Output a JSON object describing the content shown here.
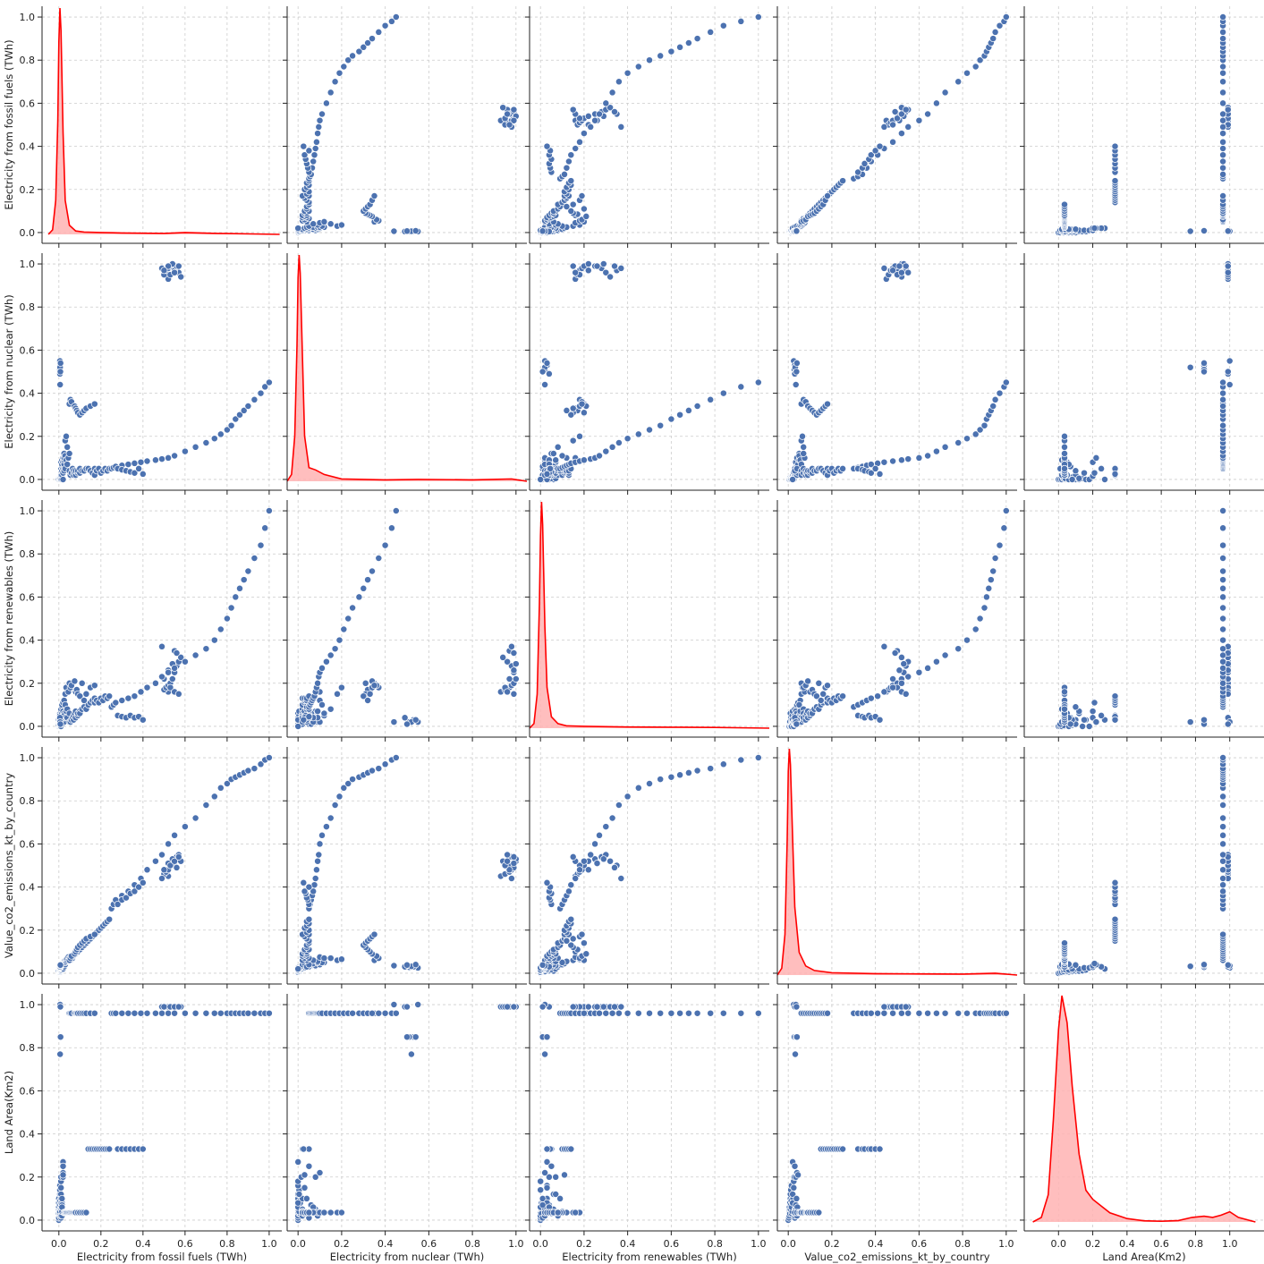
{
  "figure": {
    "type": "pairplot",
    "variables": [
      "Electricity from fossil fuels (TWh)",
      "Electricity from nuclear (TWh)",
      "Electricity from renewables (TWh)",
      "Value_co2_emissions_kt_by_country",
      "Land Area(Km2)"
    ],
    "colors": {
      "scatter": "#4c72b0",
      "scatter_edge": "#ffffff",
      "kde_line": "#ff0000",
      "kde_fill": "#ffb3b3",
      "grid": "#cccccc"
    }
  },
  "chart_data": {
    "type": "scatter",
    "grid": true,
    "axes": [
      {
        "name": "Electricity from fossil fuels (TWh)",
        "xlim": [
          -0.08,
          1.06
        ],
        "ylim": [
          -0.05,
          1.05
        ],
        "ticks": [
          "0.0",
          "0.2",
          "0.4",
          "0.6",
          "0.8",
          "1.0"
        ]
      },
      {
        "name": "Electricity from nuclear (TWh)",
        "xlim": [
          -0.05,
          1.05
        ],
        "ylim": [
          -0.05,
          1.05
        ],
        "ticks": [
          "0.0",
          "0.2",
          "0.4",
          "0.6",
          "0.8",
          "1.0"
        ]
      },
      {
        "name": "Electricity from renewables (TWh)",
        "xlim": [
          -0.05,
          1.05
        ],
        "ylim": [
          -0.05,
          1.05
        ],
        "ticks": [
          "0.0",
          "0.2",
          "0.4",
          "0.6",
          "0.8",
          "1.0"
        ]
      },
      {
        "name": "Value_co2_emissions_kt_by_country",
        "xlim": [
          -0.05,
          1.05
        ],
        "ylim": [
          -0.05,
          1.05
        ],
        "ticks": [
          "0.0",
          "0.2",
          "0.4",
          "0.6",
          "0.8",
          "1.0"
        ]
      },
      {
        "name": "Land Area(Km2)",
        "xlim": [
          -0.2,
          1.2
        ],
        "ylim": [
          -0.05,
          1.05
        ],
        "ticks": [
          "0.0",
          "0.2",
          "0.4",
          "0.6",
          "0.8",
          "1.0"
        ],
        "xticks": [
          "0.0",
          "0.2",
          "0.4",
          "0.6",
          "0.8",
          "1.0"
        ]
      }
    ],
    "diagonal": [
      {
        "variable": "Electricity from fossil fuels (TWh)",
        "kde_x": [
          -0.05,
          -0.03,
          -0.015,
          -0.005,
          0.0,
          0.005,
          0.01,
          0.02,
          0.03,
          0.05,
          0.08,
          0.12,
          0.2,
          0.3,
          0.5,
          0.6,
          0.75,
          1.05
        ],
        "kde_y": [
          0.0,
          0.02,
          0.15,
          0.5,
          0.85,
          1.0,
          0.9,
          0.45,
          0.15,
          0.04,
          0.015,
          0.01,
          0.008,
          0.006,
          0.004,
          0.008,
          0.004,
          0.0
        ]
      },
      {
        "variable": "Electricity from nuclear (TWh)",
        "kde_x": [
          -0.05,
          -0.03,
          -0.015,
          -0.005,
          0.0,
          0.005,
          0.01,
          0.02,
          0.03,
          0.05,
          0.08,
          0.12,
          0.2,
          0.4,
          0.55,
          0.8,
          0.98,
          1.05
        ],
        "kde_y": [
          0.0,
          0.03,
          0.2,
          0.6,
          0.9,
          1.0,
          0.92,
          0.55,
          0.2,
          0.06,
          0.05,
          0.03,
          0.01,
          0.006,
          0.008,
          0.006,
          0.01,
          0.0
        ]
      },
      {
        "variable": "Electricity from renewables (TWh)",
        "kde_x": [
          -0.05,
          -0.03,
          -0.015,
          -0.005,
          0.0,
          0.005,
          0.01,
          0.02,
          0.03,
          0.05,
          0.08,
          0.12,
          0.2,
          0.4,
          0.6,
          0.8,
          1.05
        ],
        "kde_y": [
          0.0,
          0.02,
          0.15,
          0.55,
          0.85,
          1.0,
          0.9,
          0.45,
          0.18,
          0.05,
          0.02,
          0.01,
          0.008,
          0.005,
          0.004,
          0.003,
          0.0
        ]
      },
      {
        "variable": "Value_co2_emissions_kt_by_country",
        "kde_x": [
          -0.05,
          -0.03,
          -0.015,
          -0.005,
          0.0,
          0.005,
          0.01,
          0.02,
          0.03,
          0.05,
          0.08,
          0.12,
          0.2,
          0.4,
          0.6,
          0.8,
          0.95,
          1.05
        ],
        "kde_y": [
          0.0,
          0.03,
          0.18,
          0.6,
          0.9,
          1.0,
          0.93,
          0.6,
          0.3,
          0.1,
          0.04,
          0.02,
          0.01,
          0.006,
          0.005,
          0.004,
          0.008,
          0.0
        ]
      },
      {
        "variable": "Land Area(Km2)",
        "kde_x": [
          -0.15,
          -0.1,
          -0.06,
          -0.03,
          0.0,
          0.02,
          0.05,
          0.08,
          0.12,
          0.16,
          0.2,
          0.25,
          0.3,
          0.4,
          0.5,
          0.6,
          0.7,
          0.78,
          0.85,
          0.9,
          0.95,
          1.0,
          1.05,
          1.15
        ],
        "kde_y": [
          0.0,
          0.02,
          0.12,
          0.45,
          0.85,
          1.0,
          0.88,
          0.6,
          0.3,
          0.14,
          0.1,
          0.07,
          0.04,
          0.015,
          0.005,
          0.003,
          0.006,
          0.02,
          0.025,
          0.02,
          0.03,
          0.045,
          0.02,
          0.0
        ]
      }
    ],
    "series": [
      {
        "name": "Electricity from fossil fuels (TWh)",
        "values": [
          0.0,
          0.0,
          0.0,
          0.0,
          0.0,
          0.0,
          0.0,
          0.0,
          0.0,
          0.005,
          0.005,
          0.005,
          0.005,
          0.005,
          0.005,
          0.005,
          0.005,
          0.005,
          0.005,
          0.01,
          0.01,
          0.01,
          0.01,
          0.01,
          0.01,
          0.01,
          0.01,
          0.01,
          0.01,
          0.015,
          0.015,
          0.015,
          0.015,
          0.015,
          0.015,
          0.015,
          0.015,
          0.02,
          0.02,
          0.02,
          0.02,
          0.02,
          0.025,
          0.025,
          0.025,
          0.025,
          0.025,
          0.025,
          0.03,
          0.03,
          0.03,
          0.035,
          0.035,
          0.04,
          0.04,
          0.045,
          0.05,
          0.05,
          0.055,
          0.06,
          0.065,
          0.07,
          0.07,
          0.075,
          0.08,
          0.08,
          0.09,
          0.09,
          0.1,
          0.1,
          0.11,
          0.12,
          0.13,
          0.14,
          0.15,
          0.16,
          0.17,
          0.17,
          0.18,
          0.19,
          0.2,
          0.21,
          0.22,
          0.23,
          0.24,
          0.52,
          0.5,
          0.51,
          0.52,
          0.53,
          0.54,
          0.55,
          0.56,
          0.57,
          0.58,
          0.55,
          0.49,
          0.56,
          0.54,
          0.52,
          0.5,
          0.53,
          0.55,
          0.57,
          0.05,
          0.055,
          0.06,
          0.075,
          0.08,
          0.085,
          0.09,
          0.1,
          0.11,
          0.12,
          0.13,
          0.15,
          0.17,
          0.005,
          0.006,
          0.005,
          0.007,
          0.006,
          0.008,
          0.005,
          0.006,
          0.007,
          0.25,
          0.26,
          0.27,
          0.3,
          0.33,
          0.36,
          0.39,
          0.42,
          0.46,
          0.49,
          0.52,
          0.55,
          0.6,
          0.65,
          0.7,
          0.74,
          0.77,
          0.8,
          0.82,
          0.84,
          0.86,
          0.88,
          0.9,
          0.93,
          0.96,
          0.98,
          1.0,
          0.28,
          0.3,
          0.32,
          0.34,
          0.36,
          0.38,
          0.4
        ]
      },
      {
        "name": "Electricity from nuclear (TWh)",
        "values": [
          0.0,
          0.0,
          0.0,
          0.0,
          0.005,
          0.0,
          0.0,
          0.005,
          0.0,
          0.0,
          0.005,
          0.01,
          0.0,
          0.01,
          0.0,
          0.005,
          0.0,
          0.01,
          0.005,
          0.0,
          0.01,
          0.02,
          0.005,
          0.03,
          0.0,
          0.015,
          0.05,
          0.02,
          0.08,
          0.0,
          0.03,
          0.02,
          0.06,
          0.04,
          0.09,
          0.02,
          0.07,
          0.0,
          0.05,
          0.08,
          0.1,
          0.03,
          0.04,
          0.06,
          0.07,
          0.09,
          0.1,
          0.12,
          0.05,
          0.11,
          0.18,
          0.09,
          0.2,
          0.07,
          0.15,
          0.1,
          0.04,
          0.12,
          0.02,
          0.03,
          0.05,
          0.04,
          0.02,
          0.03,
          0.02,
          0.04,
          0.03,
          0.04,
          0.03,
          0.05,
          0.04,
          0.04,
          0.05,
          0.05,
          0.04,
          0.03,
          0.05,
          0.02,
          0.04,
          0.05,
          0.03,
          0.04,
          0.05,
          0.04,
          0.05,
          0.93,
          0.95,
          0.97,
          0.98,
          0.99,
          1.0,
          0.99,
          0.98,
          0.96,
          0.94,
          0.97,
          0.98,
          0.99,
          1.0,
          0.99,
          0.97,
          0.95,
          0.96,
          0.99,
          0.35,
          0.37,
          0.36,
          0.34,
          0.33,
          0.32,
          0.31,
          0.3,
          0.31,
          0.32,
          0.33,
          0.34,
          0.35,
          0.55,
          0.53,
          0.51,
          0.5,
          0.52,
          0.54,
          0.49,
          0.44,
          0.5,
          0.05,
          0.055,
          0.06,
          0.065,
          0.07,
          0.075,
          0.08,
          0.085,
          0.09,
          0.095,
          0.1,
          0.11,
          0.13,
          0.15,
          0.17,
          0.19,
          0.21,
          0.23,
          0.25,
          0.28,
          0.3,
          0.32,
          0.34,
          0.37,
          0.4,
          0.43,
          0.45,
          0.05,
          0.045,
          0.04,
          0.035,
          0.03,
          0.05,
          0.025
        ]
      },
      {
        "name": "Electricity from renewables (TWh)",
        "values": [
          0.0,
          0.005,
          0.01,
          0.0,
          0.02,
          0.0,
          0.01,
          0.005,
          0.03,
          0.0,
          0.02,
          0.005,
          0.04,
          0.01,
          0.06,
          0.0,
          0.03,
          0.005,
          0.05,
          0.0,
          0.02,
          0.01,
          0.07,
          0.03,
          0.0,
          0.04,
          0.01,
          0.08,
          0.02,
          0.03,
          0.05,
          0.06,
          0.01,
          0.09,
          0.02,
          0.1,
          0.04,
          0.03,
          0.05,
          0.07,
          0.02,
          0.11,
          0.03,
          0.06,
          0.02,
          0.04,
          0.12,
          0.05,
          0.04,
          0.1,
          0.15,
          0.07,
          0.18,
          0.04,
          0.08,
          0.16,
          0.02,
          0.06,
          0.02,
          0.03,
          0.04,
          0.03,
          0.05,
          0.06,
          0.04,
          0.07,
          0.05,
          0.06,
          0.07,
          0.06,
          0.08,
          0.09,
          0.08,
          0.1,
          0.11,
          0.12,
          0.11,
          0.13,
          0.12,
          0.11,
          0.13,
          0.12,
          0.14,
          0.13,
          0.14,
          0.16,
          0.17,
          0.18,
          0.19,
          0.2,
          0.22,
          0.25,
          0.28,
          0.3,
          0.32,
          0.35,
          0.37,
          0.34,
          0.29,
          0.26,
          0.22,
          0.18,
          0.16,
          0.15,
          0.2,
          0.18,
          0.19,
          0.21,
          0.16,
          0.17,
          0.15,
          0.14,
          0.2,
          0.12,
          0.15,
          0.18,
          0.19,
          0.02,
          0.03,
          0.02,
          0.01,
          0.02,
          0.03,
          0.04,
          0.02,
          0.01,
          0.09,
          0.1,
          0.11,
          0.12,
          0.13,
          0.14,
          0.16,
          0.18,
          0.2,
          0.23,
          0.25,
          0.27,
          0.3,
          0.33,
          0.36,
          0.4,
          0.45,
          0.5,
          0.55,
          0.6,
          0.64,
          0.68,
          0.72,
          0.78,
          0.84,
          0.92,
          1.0,
          0.05,
          0.045,
          0.04,
          0.05,
          0.04,
          0.045,
          0.03
        ]
      },
      {
        "name": "Value_co2_emissions_kt_by_country",
        "values": [
          0.0,
          0.002,
          0.004,
          0.003,
          0.006,
          0.005,
          0.006,
          0.008,
          0.01,
          0.005,
          0.008,
          0.01,
          0.012,
          0.014,
          0.01,
          0.012,
          0.015,
          0.016,
          0.018,
          0.015,
          0.02,
          0.022,
          0.02,
          0.025,
          0.025,
          0.028,
          0.03,
          0.03,
          0.032,
          0.02,
          0.03,
          0.035,
          0.035,
          0.038,
          0.04,
          0.04,
          0.042,
          0.02,
          0.03,
          0.035,
          0.04,
          0.045,
          0.03,
          0.04,
          0.045,
          0.05,
          0.055,
          0.05,
          0.04,
          0.05,
          0.06,
          0.055,
          0.065,
          0.06,
          0.07,
          0.075,
          0.06,
          0.07,
          0.06,
          0.07,
          0.07,
          0.08,
          0.08,
          0.085,
          0.09,
          0.09,
          0.1,
          0.1,
          0.11,
          0.11,
          0.12,
          0.13,
          0.14,
          0.15,
          0.16,
          0.17,
          0.18,
          0.18,
          0.19,
          0.2,
          0.21,
          0.22,
          0.23,
          0.24,
          0.25,
          0.45,
          0.46,
          0.47,
          0.48,
          0.5,
          0.52,
          0.53,
          0.54,
          0.55,
          0.52,
          0.5,
          0.44,
          0.49,
          0.53,
          0.51,
          0.48,
          0.5,
          0.52,
          0.54,
          0.06,
          0.07,
          0.08,
          0.09,
          0.1,
          0.11,
          0.12,
          0.13,
          0.14,
          0.15,
          0.16,
          0.17,
          0.18,
          0.025,
          0.03,
          0.028,
          0.035,
          0.032,
          0.04,
          0.03,
          0.035,
          0.038,
          0.3,
          0.32,
          0.34,
          0.36,
          0.38,
          0.41,
          0.44,
          0.48,
          0.52,
          0.55,
          0.6,
          0.64,
          0.68,
          0.72,
          0.78,
          0.82,
          0.86,
          0.88,
          0.9,
          0.91,
          0.92,
          0.93,
          0.94,
          0.95,
          0.97,
          0.99,
          1.0,
          0.32,
          0.34,
          0.35,
          0.37,
          0.38,
          0.4,
          0.42
        ]
      },
      {
        "name": "Land Area(Km2)",
        "values": [
          0.0,
          0.02,
          0.04,
          0.01,
          0.05,
          0.03,
          0.06,
          0.08,
          0.1,
          0.02,
          0.03,
          0.05,
          0.07,
          0.09,
          0.12,
          0.14,
          0.16,
          0.03,
          0.04,
          0.06,
          0.08,
          0.1,
          0.12,
          0.15,
          0.18,
          0.2,
          0.01,
          0.02,
          0.05,
          0.08,
          0.03,
          0.05,
          0.07,
          0.1,
          0.02,
          0.04,
          0.06,
          0.27,
          0.25,
          0.2,
          0.22,
          0.21,
          0.035,
          0.035,
          0.035,
          0.035,
          0.035,
          0.035,
          0.035,
          0.035,
          0.035,
          0.035,
          0.035,
          0.035,
          0.035,
          0.035,
          0.035,
          0.035,
          0.035,
          0.035,
          0.035,
          0.035,
          0.035,
          0.035,
          0.035,
          0.035,
          0.035,
          0.035,
          0.035,
          0.035,
          0.035,
          0.035,
          0.035,
          0.33,
          0.33,
          0.33,
          0.33,
          0.33,
          0.33,
          0.33,
          0.33,
          0.33,
          0.33,
          0.33,
          0.33,
          0.99,
          0.99,
          0.99,
          0.99,
          0.99,
          0.99,
          0.99,
          0.99,
          0.99,
          0.99,
          0.99,
          0.99,
          0.99,
          0.99,
          0.99,
          0.99,
          0.99,
          0.99,
          0.99,
          0.96,
          0.96,
          0.96,
          0.96,
          0.96,
          0.96,
          0.96,
          0.96,
          0.96,
          0.96,
          0.96,
          0.96,
          0.96,
          1.0,
          0.85,
          0.85,
          0.85,
          0.77,
          0.85,
          0.99,
          1.0,
          0.99,
          0.96,
          0.96,
          0.96,
          0.96,
          0.96,
          0.96,
          0.96,
          0.96,
          0.96,
          0.96,
          0.96,
          0.96,
          0.96,
          0.96,
          0.96,
          0.96,
          0.96,
          0.96,
          0.96,
          0.96,
          0.96,
          0.96,
          0.96,
          0.96,
          0.96,
          0.96,
          0.96,
          0.33,
          0.33,
          0.33,
          0.33,
          0.33,
          0.33,
          0.33
        ]
      }
    ]
  }
}
